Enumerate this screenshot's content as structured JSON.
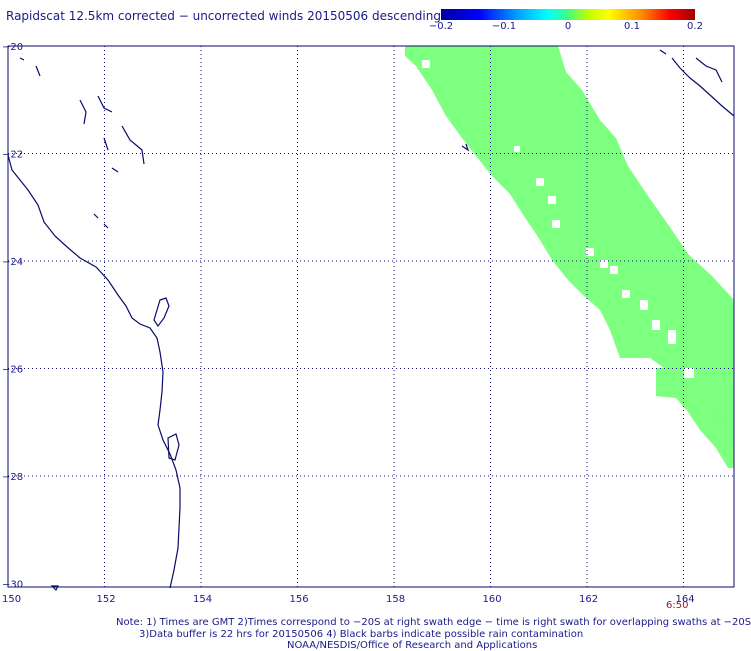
{
  "title": "Rapidscat 12.5km corrected − uncorrected winds 20150506 descending",
  "colorbar": {
    "labels": [
      "−0.2",
      "−0.1",
      "0",
      "0.1",
      "0.2"
    ]
  },
  "axes": {
    "lon_labels": [
      "150",
      "152",
      "154",
      "156",
      "158",
      "160",
      "162",
      "164"
    ],
    "lat_labels": [
      "−20",
      "−22",
      "−24",
      "−26",
      "−28",
      "−30"
    ]
  },
  "swath_color": "#7dff80",
  "coast_color": "#0b0b6b",
  "time_label": "6:50",
  "notes": {
    "line1": "Note: 1) Times are GMT 2)Times correspond to −20S at right swath edge − time is right swath for overlapping swaths at −20S",
    "line2": "3)Data buffer is 22 hrs for 20150506 4) Black barbs indicate possible rain contamination",
    "line3": "NOAA/NESDIS/Office of Research and Applications"
  }
}
